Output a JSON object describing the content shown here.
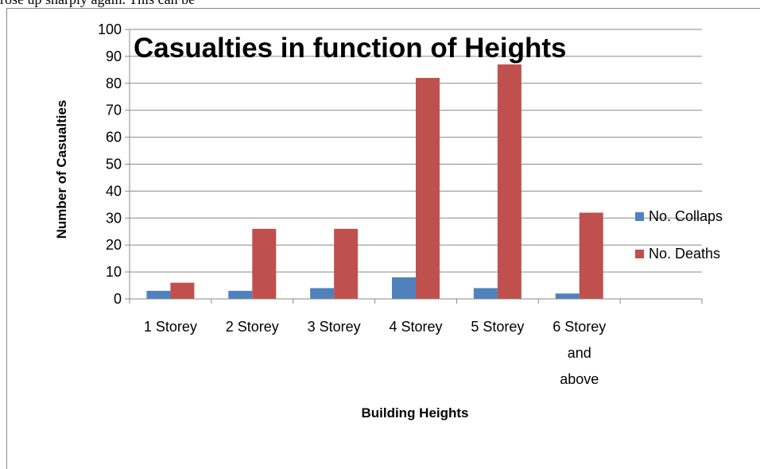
{
  "page": {
    "top_text": "rose up sharply again. This can be"
  },
  "chart_data": {
    "type": "bar",
    "title": "Casualties in function of Heights",
    "xlabel": "Building Heights",
    "ylabel": "Number of Casualties",
    "ylim": [
      0,
      100
    ],
    "yticks": [
      0,
      10,
      20,
      30,
      40,
      50,
      60,
      70,
      80,
      90,
      100
    ],
    "grid": true,
    "legend_position": "right",
    "categories": [
      [
        "1 Storey"
      ],
      [
        "2 Storey"
      ],
      [
        "3 Storey"
      ],
      [
        "4 Storey"
      ],
      [
        "5 Storey"
      ],
      [
        "6 Storey",
        "and",
        "above"
      ],
      [
        ""
      ]
    ],
    "series": [
      {
        "name": "No. Collaps",
        "color": "#4F81BD",
        "values": [
          3,
          3,
          4,
          8,
          4,
          2,
          null
        ]
      },
      {
        "name": "No. Deaths",
        "color": "#C0504D",
        "values": [
          6,
          26,
          26,
          82,
          87,
          32,
          null
        ]
      }
    ]
  }
}
